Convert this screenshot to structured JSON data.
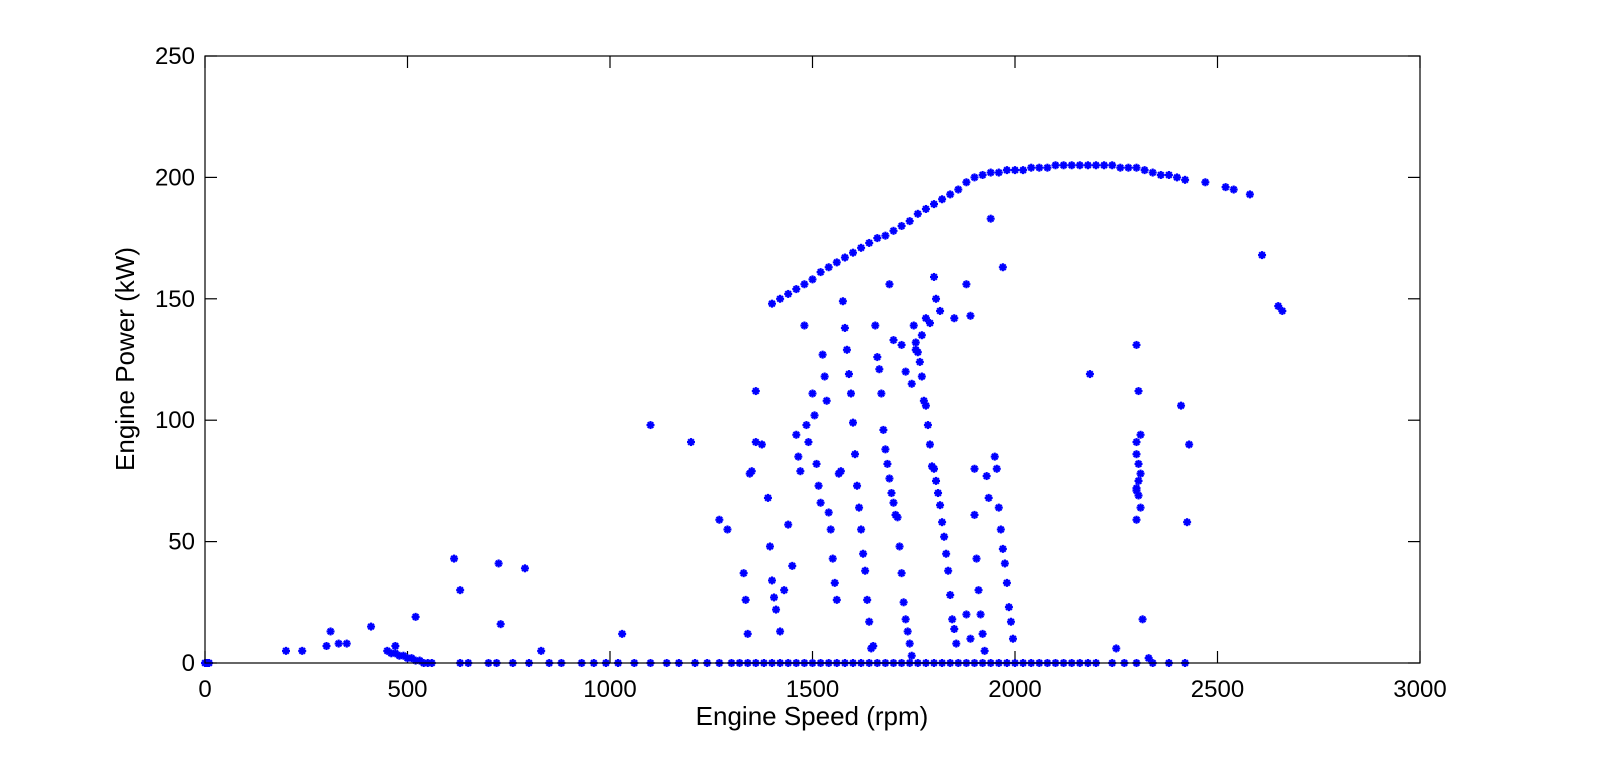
{
  "chart_data": {
    "type": "scatter",
    "title": "",
    "xlabel": "Engine Speed (rpm)",
    "ylabel": "Engine Power (kW)",
    "xlim": [
      0,
      3000
    ],
    "ylim": [
      0,
      250
    ],
    "xticks": [
      0,
      500,
      1000,
      1500,
      2000,
      2500,
      3000
    ],
    "yticks": [
      0,
      50,
      100,
      150,
      200,
      250
    ],
    "grid": false,
    "legend": "none",
    "marker": "asterisk",
    "colors": {
      "series": "#0000ff",
      "axes": "#000000",
      "background": "#ffffff"
    },
    "series": [
      {
        "points": [
          [
            0,
            0
          ],
          [
            5,
            0
          ],
          [
            10,
            0
          ],
          [
            200,
            5
          ],
          [
            240,
            5
          ],
          [
            300,
            7
          ],
          [
            310,
            13
          ],
          [
            330,
            8
          ],
          [
            350,
            8
          ],
          [
            410,
            15
          ],
          [
            450,
            5
          ],
          [
            460,
            4
          ],
          [
            470,
            4
          ],
          [
            480,
            3
          ],
          [
            490,
            3
          ],
          [
            500,
            2
          ],
          [
            510,
            2
          ],
          [
            520,
            1
          ],
          [
            530,
            1
          ],
          [
            540,
            0
          ],
          [
            550,
            0
          ],
          [
            560,
            0
          ],
          [
            470,
            7
          ],
          [
            520,
            19
          ],
          [
            615,
            43
          ],
          [
            630,
            30
          ],
          [
            725,
            41
          ],
          [
            730,
            16
          ],
          [
            790,
            39
          ],
          [
            830,
            5
          ],
          [
            1030,
            12
          ],
          [
            1100,
            98
          ],
          [
            1200,
            91
          ],
          [
            1270,
            59
          ],
          [
            1290,
            55
          ],
          [
            1330,
            37
          ],
          [
            1335,
            26
          ],
          [
            1340,
            12
          ],
          [
            1345,
            78
          ],
          [
            1350,
            79
          ],
          [
            1360,
            112
          ],
          [
            1360,
            91
          ],
          [
            1375,
            90
          ],
          [
            1390,
            68
          ],
          [
            1395,
            48
          ],
          [
            1400,
            34
          ],
          [
            1405,
            27
          ],
          [
            1410,
            22
          ],
          [
            1420,
            13
          ],
          [
            1430,
            30
          ],
          [
            1440,
            57
          ],
          [
            1450,
            40
          ],
          [
            1460,
            94
          ],
          [
            1465,
            85
          ],
          [
            1470,
            79
          ],
          [
            1480,
            139
          ],
          [
            1485,
            98
          ],
          [
            1490,
            91
          ],
          [
            1500,
            111
          ],
          [
            1505,
            102
          ],
          [
            1510,
            82
          ],
          [
            1515,
            73
          ],
          [
            1520,
            66
          ],
          [
            1525,
            127
          ],
          [
            1530,
            118
          ],
          [
            1535,
            108
          ],
          [
            1540,
            62
          ],
          [
            1545,
            55
          ],
          [
            1550,
            43
          ],
          [
            1555,
            33
          ],
          [
            1560,
            26
          ],
          [
            1565,
            78
          ],
          [
            1570,
            79
          ],
          [
            1575,
            149
          ],
          [
            1580,
            138
          ],
          [
            1585,
            129
          ],
          [
            1590,
            119
          ],
          [
            1595,
            111
          ],
          [
            1600,
            99
          ],
          [
            1605,
            86
          ],
          [
            1610,
            73
          ],
          [
            1615,
            64
          ],
          [
            1620,
            55
          ],
          [
            1625,
            45
          ],
          [
            1630,
            38
          ],
          [
            1635,
            26
          ],
          [
            1640,
            17
          ],
          [
            1645,
            6
          ],
          [
            1650,
            7
          ],
          [
            1655,
            139
          ],
          [
            1660,
            126
          ],
          [
            1665,
            121
          ],
          [
            1670,
            111
          ],
          [
            1675,
            96
          ],
          [
            1680,
            88
          ],
          [
            1685,
            82
          ],
          [
            1690,
            76
          ],
          [
            1695,
            70
          ],
          [
            1700,
            66
          ],
          [
            1705,
            61
          ],
          [
            1710,
            60
          ],
          [
            1715,
            48
          ],
          [
            1720,
            37
          ],
          [
            1725,
            25
          ],
          [
            1730,
            18
          ],
          [
            1735,
            13
          ],
          [
            1740,
            8
          ],
          [
            1745,
            3
          ],
          [
            1750,
            139
          ],
          [
            1755,
            132
          ],
          [
            1760,
            128
          ],
          [
            1765,
            124
          ],
          [
            1770,
            118
          ],
          [
            1775,
            108
          ],
          [
            1780,
            106
          ],
          [
            1785,
            98
          ],
          [
            1790,
            90
          ],
          [
            1795,
            81
          ],
          [
            1800,
            80
          ],
          [
            1805,
            75
          ],
          [
            1810,
            70
          ],
          [
            1815,
            65
          ],
          [
            1820,
            58
          ],
          [
            1825,
            52
          ],
          [
            1830,
            45
          ],
          [
            1835,
            38
          ],
          [
            1840,
            28
          ],
          [
            1845,
            18
          ],
          [
            1850,
            14
          ],
          [
            1855,
            8
          ],
          [
            1690,
            156
          ],
          [
            1700,
            133
          ],
          [
            1720,
            131
          ],
          [
            1730,
            120
          ],
          [
            1745,
            115
          ],
          [
            1755,
            129
          ],
          [
            1770,
            135
          ],
          [
            1780,
            142
          ],
          [
            1790,
            140
          ],
          [
            1800,
            159
          ],
          [
            1805,
            150
          ],
          [
            1815,
            145
          ],
          [
            1850,
            142
          ],
          [
            1880,
            156
          ],
          [
            1890,
            143
          ],
          [
            1900,
            80
          ],
          [
            1900,
            61
          ],
          [
            1905,
            43
          ],
          [
            1910,
            30
          ],
          [
            1915,
            20
          ],
          [
            1920,
            12
          ],
          [
            1925,
            5
          ],
          [
            1930,
            77
          ],
          [
            1935,
            68
          ],
          [
            1940,
            183
          ],
          [
            1950,
            85
          ],
          [
            1955,
            80
          ],
          [
            1960,
            64
          ],
          [
            1965,
            55
          ],
          [
            1970,
            47
          ],
          [
            1975,
            41
          ],
          [
            1980,
            33
          ],
          [
            1985,
            23
          ],
          [
            1990,
            17
          ],
          [
            1995,
            10
          ],
          [
            1970,
            163
          ],
          [
            1880,
            20
          ],
          [
            1890,
            10
          ],
          [
            2185,
            119
          ],
          [
            2300,
            131
          ],
          [
            2305,
            112
          ],
          [
            2300,
            91
          ],
          [
            2300,
            86
          ],
          [
            2305,
            82
          ],
          [
            2310,
            78
          ],
          [
            2300,
            72
          ],
          [
            2305,
            69
          ],
          [
            2310,
            64
          ],
          [
            2300,
            59
          ],
          [
            2310,
            94
          ],
          [
            2300,
            71
          ],
          [
            2305,
            75
          ],
          [
            2315,
            18
          ],
          [
            2250,
            6
          ],
          [
            2330,
            2
          ],
          [
            2410,
            106
          ],
          [
            2430,
            90
          ],
          [
            2425,
            58
          ],
          [
            2610,
            168
          ],
          [
            2650,
            147
          ],
          [
            2660,
            145
          ],
          [
            1400,
            148
          ],
          [
            1420,
            150
          ],
          [
            1440,
            152
          ],
          [
            1460,
            154
          ],
          [
            1480,
            156
          ],
          [
            1500,
            158
          ],
          [
            1520,
            161
          ],
          [
            1540,
            163
          ],
          [
            1560,
            165
          ],
          [
            1580,
            167
          ],
          [
            1600,
            169
          ],
          [
            1620,
            171
          ],
          [
            1640,
            173
          ],
          [
            1660,
            175
          ],
          [
            1680,
            176
          ],
          [
            1700,
            178
          ],
          [
            1720,
            180
          ],
          [
            1740,
            182
          ],
          [
            1760,
            185
          ],
          [
            1780,
            187
          ],
          [
            1800,
            189
          ],
          [
            1820,
            191
          ],
          [
            1840,
            193
          ],
          [
            1860,
            195
          ],
          [
            1880,
            198
          ],
          [
            1900,
            200
          ],
          [
            1920,
            201
          ],
          [
            1940,
            202
          ],
          [
            1960,
            202
          ],
          [
            1980,
            203
          ],
          [
            2000,
            203
          ],
          [
            2020,
            203
          ],
          [
            2040,
            204
          ],
          [
            2060,
            204
          ],
          [
            2080,
            204
          ],
          [
            2100,
            205
          ],
          [
            2120,
            205
          ],
          [
            2140,
            205
          ],
          [
            2160,
            205
          ],
          [
            2180,
            205
          ],
          [
            2200,
            205
          ],
          [
            2220,
            205
          ],
          [
            2240,
            205
          ],
          [
            2260,
            204
          ],
          [
            2280,
            204
          ],
          [
            2300,
            204
          ],
          [
            2320,
            203
          ],
          [
            2340,
            202
          ],
          [
            2360,
            201
          ],
          [
            2380,
            201
          ],
          [
            2400,
            200
          ],
          [
            2420,
            199
          ],
          [
            2470,
            198
          ],
          [
            2520,
            196
          ],
          [
            2540,
            195
          ],
          [
            2580,
            193
          ],
          [
            630,
            0
          ],
          [
            650,
            0
          ],
          [
            700,
            0
          ],
          [
            720,
            0
          ],
          [
            760,
            0
          ],
          [
            800,
            0
          ],
          [
            850,
            0
          ],
          [
            880,
            0
          ],
          [
            930,
            0
          ],
          [
            960,
            0
          ],
          [
            990,
            0
          ],
          [
            1020,
            0
          ],
          [
            1060,
            0
          ],
          [
            1100,
            0
          ],
          [
            1140,
            0
          ],
          [
            1170,
            0
          ],
          [
            1210,
            0
          ],
          [
            1240,
            0
          ],
          [
            1270,
            0
          ],
          [
            1300,
            0
          ],
          [
            1320,
            0
          ],
          [
            1340,
            0
          ],
          [
            1360,
            0
          ],
          [
            1380,
            0
          ],
          [
            1400,
            0
          ],
          [
            1420,
            0
          ],
          [
            1440,
            0
          ],
          [
            1460,
            0
          ],
          [
            1480,
            0
          ],
          [
            1500,
            0
          ],
          [
            1520,
            0
          ],
          [
            1540,
            0
          ],
          [
            1560,
            0
          ],
          [
            1580,
            0
          ],
          [
            1600,
            0
          ],
          [
            1620,
            0
          ],
          [
            1640,
            0
          ],
          [
            1660,
            0
          ],
          [
            1680,
            0
          ],
          [
            1700,
            0
          ],
          [
            1720,
            0
          ],
          [
            1740,
            0
          ],
          [
            1760,
            0
          ],
          [
            1780,
            0
          ],
          [
            1800,
            0
          ],
          [
            1820,
            0
          ],
          [
            1840,
            0
          ],
          [
            1860,
            0
          ],
          [
            1880,
            0
          ],
          [
            1900,
            0
          ],
          [
            1920,
            0
          ],
          [
            1940,
            0
          ],
          [
            1960,
            0
          ],
          [
            1980,
            0
          ],
          [
            2000,
            0
          ],
          [
            2020,
            0
          ],
          [
            2040,
            0
          ],
          [
            2060,
            0
          ],
          [
            2080,
            0
          ],
          [
            2100,
            0
          ],
          [
            2120,
            0
          ],
          [
            2140,
            0
          ],
          [
            2160,
            0
          ],
          [
            2180,
            0
          ],
          [
            2200,
            0
          ],
          [
            2240,
            0
          ],
          [
            2270,
            0
          ],
          [
            2300,
            0
          ],
          [
            2340,
            0
          ],
          [
            2380,
            0
          ],
          [
            2420,
            0
          ]
        ]
      }
    ]
  }
}
